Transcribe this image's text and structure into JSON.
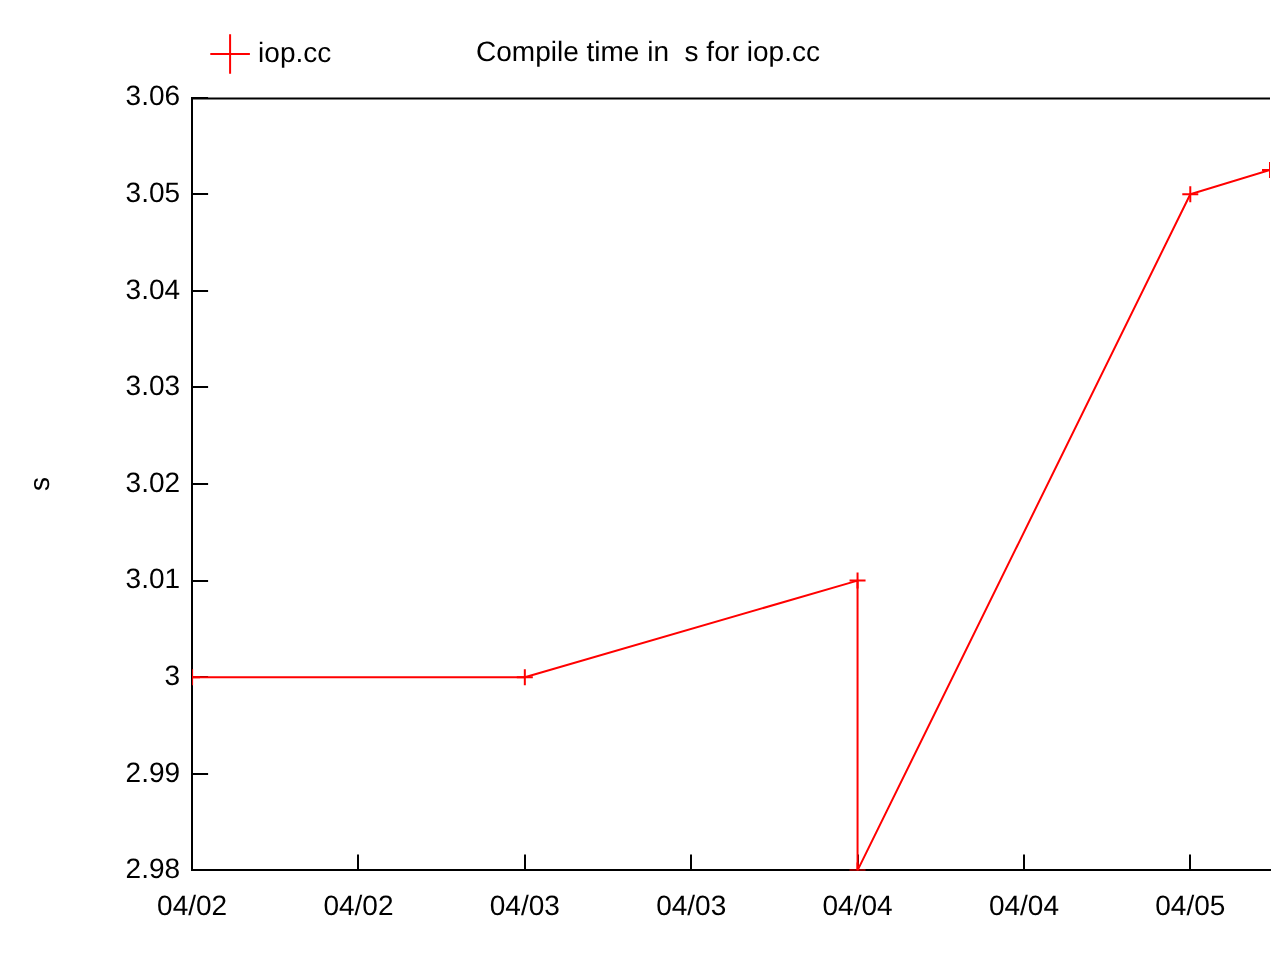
{
  "chart_data": {
    "type": "line",
    "title": "Compile time in  s for iop.cc",
    "ylabel": "s",
    "x": [
      "--04-02",
      "--04-03",
      "--04-04",
      "--04-04",
      "--04-05",
      "--04-05T05:45"
    ],
    "series": [
      {
        "name": "iop.cc",
        "color": "#ff0000",
        "values": [
          3.0,
          3.0,
          3.01,
          2.98,
          3.05,
          3.0525
        ]
      }
    ],
    "xlim": [
      "--04-02",
      "--04-05T05:45"
    ],
    "xticks": [
      {
        "value": "--04-02",
        "label": "04/02"
      },
      {
        "value": "--04-02T12:00",
        "label": "04/02"
      },
      {
        "value": "--04-03",
        "label": "04/03"
      },
      {
        "value": "--04-03T12:00",
        "label": "04/03"
      },
      {
        "value": "--04-04",
        "label": "04/04"
      },
      {
        "value": "--04-04T12:00",
        "label": "04/04"
      },
      {
        "value": "--04-05",
        "label": "04/05"
      }
    ],
    "ylim": [
      2.98,
      3.06
    ],
    "yticks": [
      2.98,
      2.99,
      3,
      3.01,
      3.02,
      3.03,
      3.04,
      3.05,
      3.06
    ],
    "legend": "top left",
    "marker": "cross",
    "line_style": "solid",
    "grid": false
  }
}
